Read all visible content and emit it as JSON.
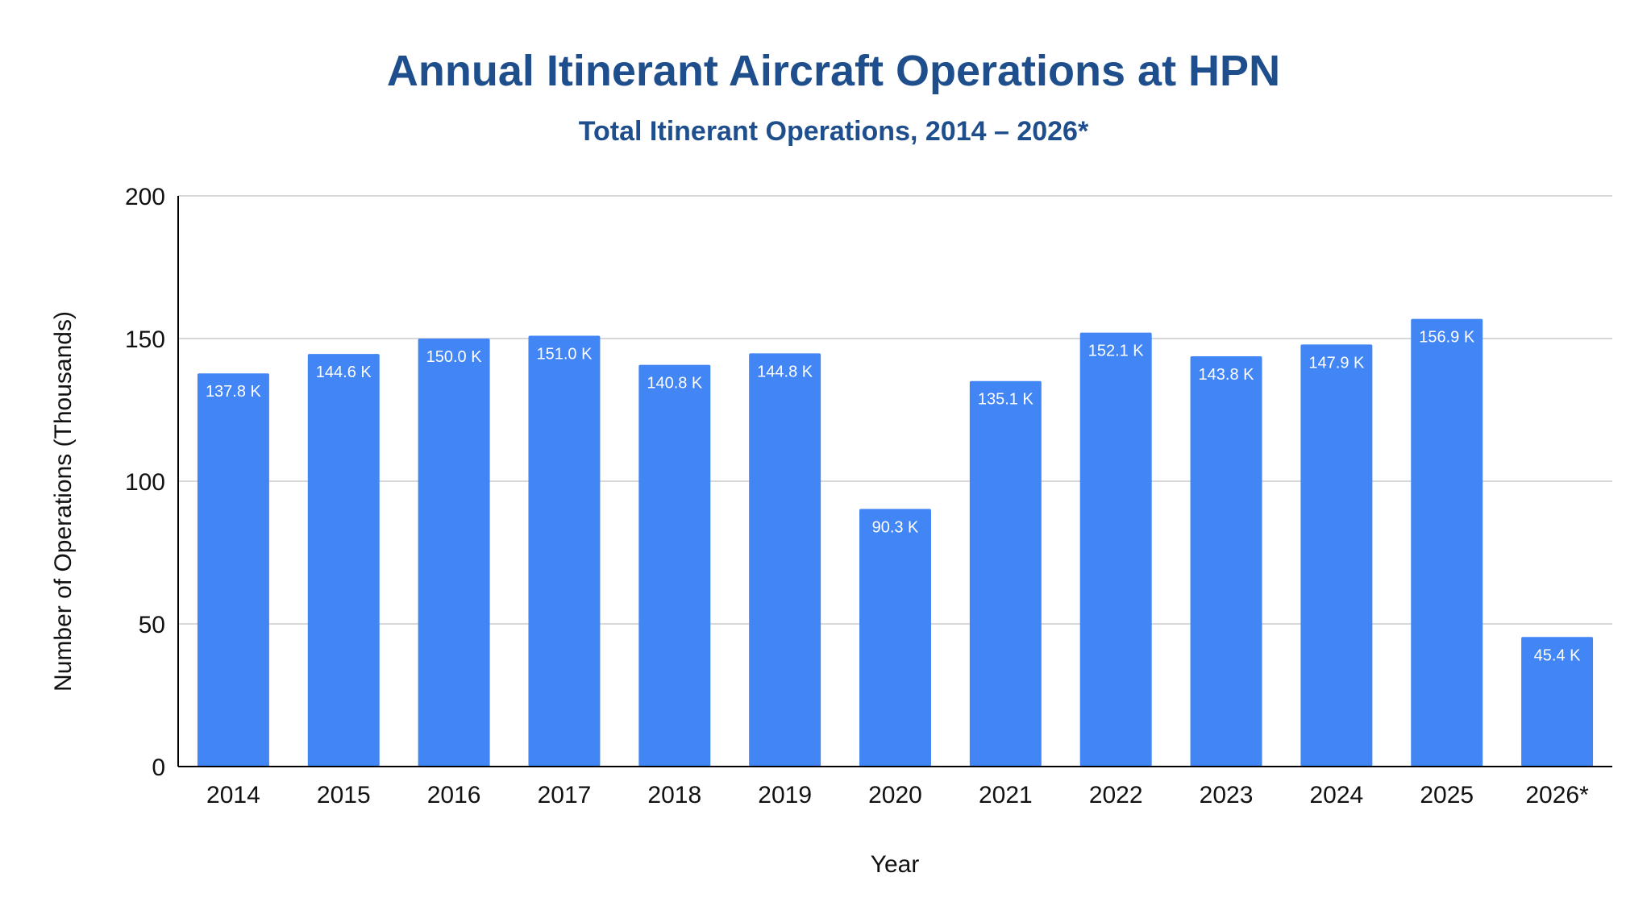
{
  "chart_data": {
    "type": "bar",
    "title": "Annual Itinerant Aircraft Operations at HPN",
    "subtitle": "Total Itinerant Operations, 2014 – 2026*",
    "xlabel": "Year",
    "ylabel": "Number of Operations (Thousands)",
    "categories": [
      "2014",
      "2015",
      "2016",
      "2017",
      "2018",
      "2019",
      "2020",
      "2021",
      "2022",
      "2023",
      "2024",
      "2025",
      "2026*"
    ],
    "values": [
      137.8,
      144.6,
      150.0,
      151.0,
      140.8,
      144.8,
      90.3,
      135.1,
      152.1,
      143.8,
      147.9,
      156.9,
      45.4
    ],
    "data_labels": [
      "137.8 K",
      "144.6 K",
      "150.0 K",
      "151.0 K",
      "140.8 K",
      "144.8 K",
      "90.3 K",
      "135.1 K",
      "152.1 K",
      "143.8 K",
      "147.9 K",
      "156.9 K",
      "45.4 K"
    ],
    "ylim": [
      0,
      200
    ],
    "yticks": [
      0,
      50,
      100,
      150,
      200
    ],
    "grid": true,
    "legend": "none",
    "colors": {
      "bar": "#4285f4",
      "title": "#1f4e8c",
      "grid": "#cccccc",
      "axis": "#000000"
    }
  }
}
